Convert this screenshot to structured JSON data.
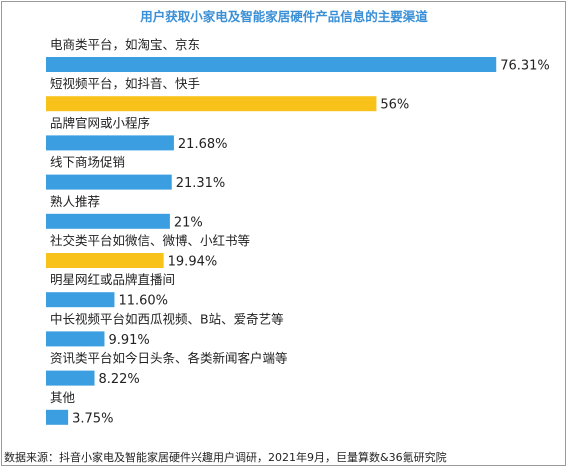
{
  "chart_data": {
    "type": "bar",
    "orientation": "horizontal",
    "title": "用户获取小家电及智能家居硬件产品信息的主要渠道",
    "categories": [
      "电商类平台，如淘宝、京东",
      "短视频平台，如抖音、快手",
      "品牌官网或小程序",
      "线下商场促销",
      "熟人推荐",
      "社交类平台如微信、微博、小红书等",
      "明星网红或品牌直播间",
      "中长视频平台如西瓜视频、B站、爱奇艺等",
      "资讯类平台如今日头条、各类新闻客户端等",
      "其他"
    ],
    "values": [
      76.31,
      56,
      21.68,
      21.31,
      21,
      19.94,
      11.6,
      9.91,
      8.22,
      3.75
    ],
    "value_labels": [
      "76.31%",
      "56%",
      "21.68%",
      "21.31%",
      "21%",
      "19.94%",
      "11.60%",
      "9.91%",
      "8.22%",
      "3.75%"
    ],
    "highlighted": [
      false,
      true,
      false,
      false,
      false,
      true,
      false,
      false,
      false,
      false
    ],
    "xlim": [
      0,
      100
    ],
    "grid": false,
    "colors": {
      "bar": "#3a9ee0",
      "highlight": "#f9c21a",
      "title": "#3a8fd6",
      "label": "#222222"
    },
    "source": "数据来源：抖音小家电及智能家居硬件兴趣用户调研，2021年9月，巨量算数&36氪研究院"
  }
}
